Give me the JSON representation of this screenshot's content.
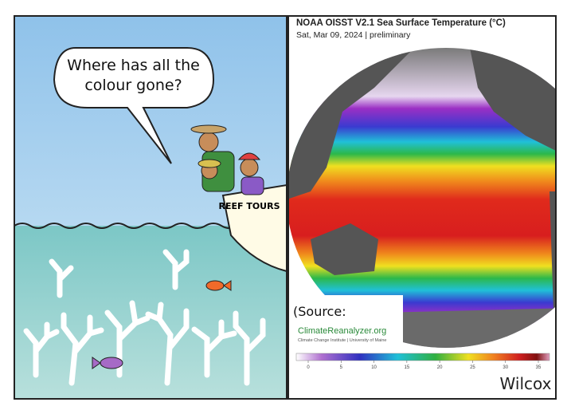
{
  "cartoon": {
    "speech_bubble": "Where has all the colour gone?",
    "boat_sign": "REEF TOURS",
    "signature": "Wilcox"
  },
  "map": {
    "title": "NOAA OISST V2.1 Sea Surface Temperature (°C)",
    "subtitle": "Sat, Mar 09, 2024 | preliminary",
    "source_note": "(Source:",
    "source_site": "ClimateReanalyzer.org",
    "source_institute": "Climate Change Institute | University of Maine",
    "colorbar_ticks": [
      0,
      5,
      10,
      15,
      20,
      25,
      30,
      35
    ]
  }
}
